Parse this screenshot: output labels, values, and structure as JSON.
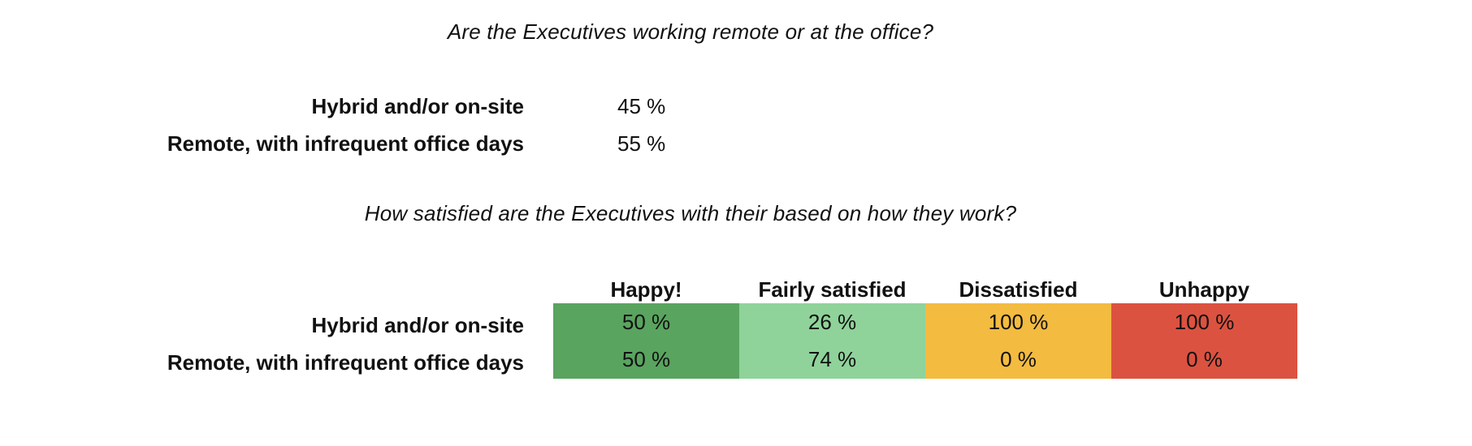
{
  "work_location": {
    "title": "Are the Executives working remote or at the office?",
    "rows": [
      {
        "label": "Hybrid and/or on-site",
        "value": "45 %"
      },
      {
        "label": "Remote, with infrequent office days",
        "value": "55 %"
      }
    ]
  },
  "satisfaction": {
    "title": "How satisfied are the Executives with their based on how they work?",
    "columns": [
      "Happy!",
      "Fairly satisfied",
      "Dissatisfied",
      "Unhappy"
    ],
    "column_colors": [
      "#59A45F",
      "#8FD39A",
      "#F3BB40",
      "#DC5240"
    ],
    "rows": [
      {
        "label": "Hybrid and/or on-site",
        "values": [
          "50 %",
          "26 %",
          "100 %",
          "100 %"
        ]
      },
      {
        "label": "Remote, with infrequent office days",
        "values": [
          "50 %",
          "74 %",
          "0 %",
          "0 %"
        ]
      }
    ]
  }
}
